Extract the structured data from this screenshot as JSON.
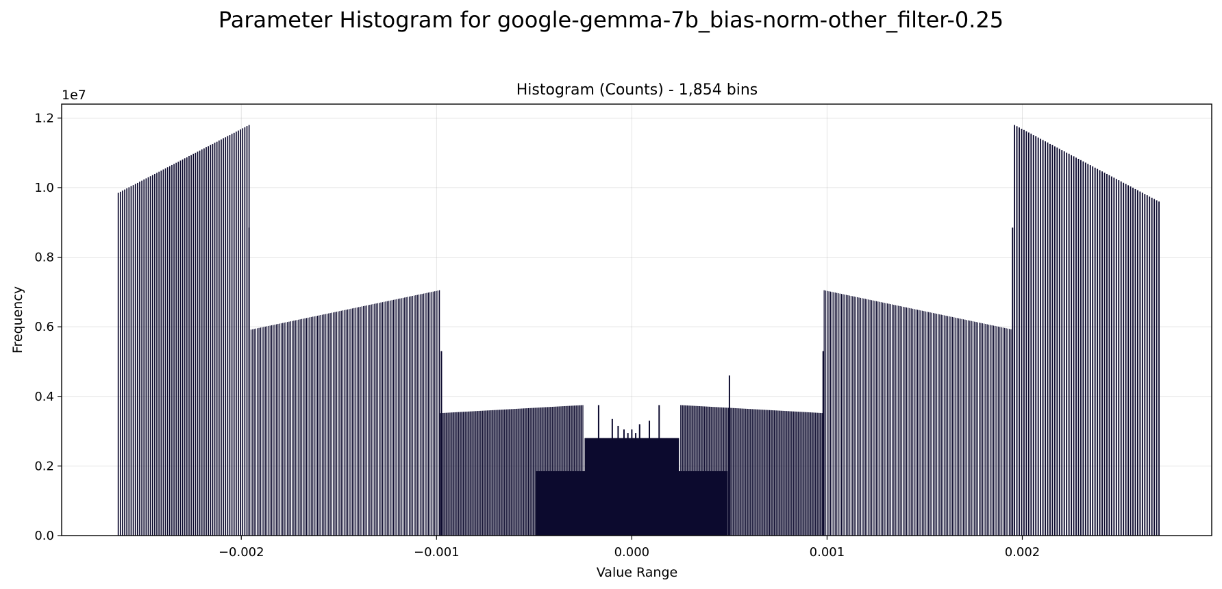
{
  "chart_data": {
    "type": "bar",
    "title": "Parameter Histogram for google-gemma-7b_bias-norm-other_filter-0.25",
    "subtitle": "Histogram (Counts) - 1,854 bins",
    "xlabel": "Value Range",
    "ylabel": "Frequency",
    "y_offset_label": "1e7",
    "y_scale": 10000000,
    "xlim": [
      -0.00292,
      0.00297
    ],
    "ylim": [
      0,
      12.4
    ],
    "xticks": [
      -0.002,
      -0.001,
      0.0,
      0.001,
      0.002
    ],
    "xtick_labels": [
      "−0.002",
      "−0.001",
      "0.000",
      "0.001",
      "0.002"
    ],
    "yticks": [
      0.0,
      0.2,
      0.4,
      0.6,
      0.8,
      1.0,
      1.2
    ],
    "ytick_labels": [
      "0.0",
      "0.2",
      "0.4",
      "0.6",
      "0.8",
      "1.0",
      "1.2"
    ],
    "grid": true,
    "bar_color": "#0c0a2e",
    "segments": [
      {
        "x_start": -0.00263,
        "x_end": -0.00196,
        "y_start": 9.85,
        "y_end": 11.8,
        "bins": 62
      },
      {
        "x_start": -0.00195,
        "x_end": -0.000985,
        "y_start": 5.92,
        "y_end": 7.05,
        "bins": 120
      },
      {
        "x_start": -0.00098,
        "x_end": -0.00025,
        "y_start": 3.52,
        "y_end": 3.75,
        "bins": 150
      },
      {
        "x_start": -0.00049,
        "x_end": -0.00025,
        "y_start": 1.85,
        "y_end": 1.85,
        "bins": 60
      },
      {
        "x_start": -0.00049,
        "x_end": 0.00049,
        "y_start": 1.85,
        "y_end": 1.85,
        "bins": 200
      },
      {
        "x_start": -0.00024,
        "x_end": 0.00024,
        "y_start": 2.8,
        "y_end": 2.8,
        "bins": 120
      },
      {
        "x_start": 0.00025,
        "x_end": 0.00098,
        "y_start": 3.75,
        "y_end": 3.52,
        "bins": 150
      },
      {
        "x_start": 0.00025,
        "x_end": 0.00049,
        "y_start": 1.85,
        "y_end": 1.85,
        "bins": 60
      },
      {
        "x_start": 0.000985,
        "x_end": 0.00195,
        "y_start": 7.05,
        "y_end": 5.92,
        "bins": 120
      },
      {
        "x_start": 0.00196,
        "x_end": 0.0027,
        "y_start": 11.8,
        "y_end": 9.6,
        "bins": 62
      }
    ],
    "spikes": [
      {
        "x": -0.00196,
        "y": 8.85
      },
      {
        "x": -0.000975,
        "y": 5.3
      },
      {
        "x": -0.00017,
        "y": 3.75
      },
      {
        "x": -0.0001,
        "y": 3.35
      },
      {
        "x": -7e-05,
        "y": 3.15
      },
      {
        "x": -4e-05,
        "y": 3.05
      },
      {
        "x": -2e-05,
        "y": 2.95
      },
      {
        "x": 0.0,
        "y": 3.05
      },
      {
        "x": 2e-05,
        "y": 2.95
      },
      {
        "x": 4e-05,
        "y": 3.2
      },
      {
        "x": 9e-05,
        "y": 3.3
      },
      {
        "x": 0.00014,
        "y": 3.75
      },
      {
        "x": 0.0005,
        "y": 4.6
      },
      {
        "x": 0.00098,
        "y": 5.3
      },
      {
        "x": 0.00195,
        "y": 8.85
      }
    ]
  }
}
